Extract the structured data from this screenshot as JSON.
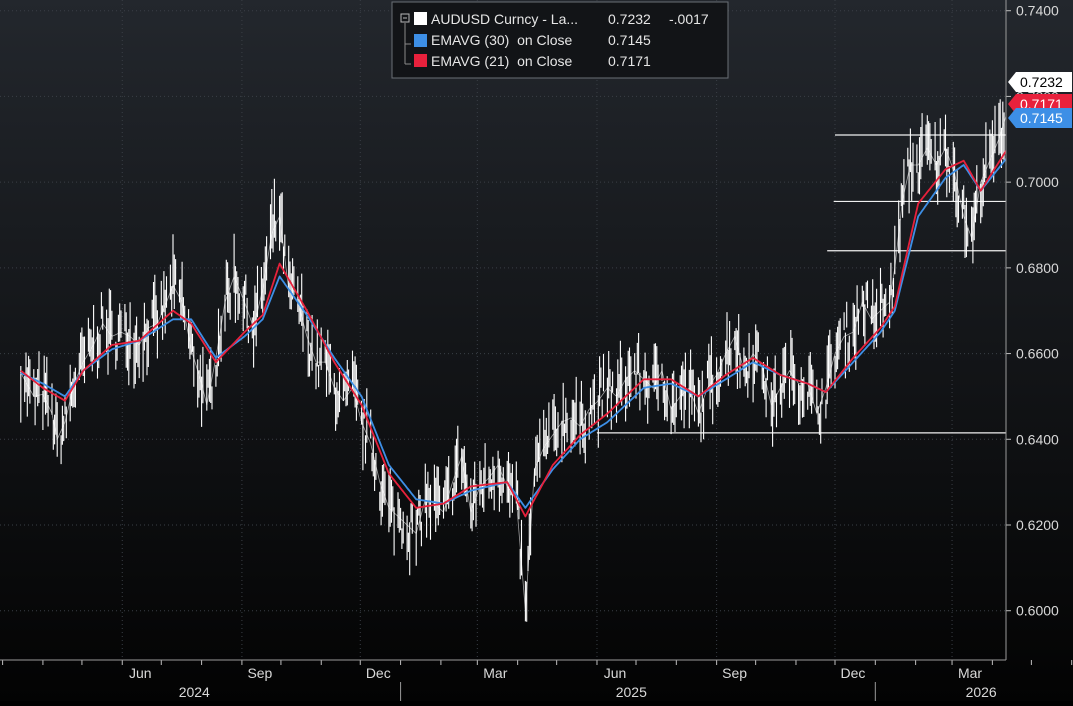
{
  "colors": {
    "price": "#ffffff",
    "ema30": "#3d8fe6",
    "ema21": "#e8213c",
    "hline": "#f0f0f0",
    "grid": "#3a3f46",
    "bg_top": "#23272d",
    "bg_bottom": "#030303"
  },
  "legend": {
    "price_label": "AUDUSD Curncy - La...",
    "price_value": "0.7232",
    "price_change": "-.0017",
    "ema30_label": "EMAVG (30)  on Close",
    "ema30_value": "0.7145",
    "ema21_label": "EMAVG (21)  on Close",
    "ema21_value": "0.7171"
  },
  "chart_data": {
    "type": "line",
    "ylim": [
      0.5885,
      0.7425
    ],
    "yticks": [
      "0.6000",
      "0.6200",
      "0.6400",
      "0.6600",
      "0.6800",
      "0.7000",
      "0.7200",
      "0.7400"
    ],
    "month_ticks": [
      "Jun",
      "Sep",
      "Dec",
      "Mar",
      "Jun",
      "Sep",
      "Dec",
      "Mar"
    ],
    "year_labels": [
      "2024",
      "2025",
      "2026"
    ],
    "last_value_tags": [
      {
        "series": "price",
        "value": "0.7232"
      },
      {
        "series": "ema21",
        "value": "0.7171"
      },
      {
        "series": "ema30",
        "value": "0.7145"
      }
    ],
    "horizontal_lines": [
      {
        "value": 0.711,
        "from": "2025-12-01"
      },
      {
        "value": 0.6955,
        "from": "2025-11-30"
      },
      {
        "value": 0.684,
        "from": "2025-11-25"
      },
      {
        "value": 0.6415,
        "from": "2025-06-01"
      }
    ],
    "series": [
      {
        "name": "AUDUSD Curncy",
        "style": "high-low",
        "points": [
          [
            "2024-03-15",
            0.6555
          ],
          [
            "2024-03-25",
            0.65
          ],
          [
            "2024-04-01",
            0.6505
          ],
          [
            "2024-04-08",
            0.646
          ],
          [
            "2024-04-12",
            0.64
          ],
          [
            "2024-04-18",
            0.644
          ],
          [
            "2024-04-25",
            0.653
          ],
          [
            "2024-05-02",
            0.658
          ],
          [
            "2024-05-10",
            0.662
          ],
          [
            "2024-05-17",
            0.667
          ],
          [
            "2024-05-24",
            0.664
          ],
          [
            "2024-05-31",
            0.665
          ],
          [
            "2024-06-07",
            0.664
          ],
          [
            "2024-06-14",
            0.662
          ],
          [
            "2024-06-21",
            0.666
          ],
          [
            "2024-06-28",
            0.667
          ],
          [
            "2024-07-05",
            0.672
          ],
          [
            "2024-07-10",
            0.676
          ],
          [
            "2024-07-17",
            0.672
          ],
          [
            "2024-07-24",
            0.661
          ],
          [
            "2024-08-01",
            0.653
          ],
          [
            "2024-08-05",
            0.648
          ],
          [
            "2024-08-12",
            0.659
          ],
          [
            "2024-08-19",
            0.672
          ],
          [
            "2024-08-26",
            0.678
          ],
          [
            "2024-09-03",
            0.672
          ],
          [
            "2024-09-10",
            0.666
          ],
          [
            "2024-09-17",
            0.675
          ],
          [
            "2024-09-24",
            0.688
          ],
          [
            "2024-09-30",
            0.692
          ],
          [
            "2024-10-07",
            0.675
          ],
          [
            "2024-10-14",
            0.672
          ],
          [
            "2024-10-21",
            0.664
          ],
          [
            "2024-10-28",
            0.658
          ],
          [
            "2024-11-04",
            0.658
          ],
          [
            "2024-11-11",
            0.652
          ],
          [
            "2024-11-18",
            0.649
          ],
          [
            "2024-11-25",
            0.652
          ],
          [
            "2024-12-02",
            0.644
          ],
          [
            "2024-12-09",
            0.639
          ],
          [
            "2024-12-16",
            0.63
          ],
          [
            "2024-12-23",
            0.624
          ],
          [
            "2024-12-30",
            0.622
          ],
          [
            "2025-01-06",
            0.62
          ],
          [
            "2025-01-13",
            0.618
          ],
          [
            "2025-01-20",
            0.626
          ],
          [
            "2025-01-27",
            0.625
          ],
          [
            "2025-02-03",
            0.623
          ],
          [
            "2025-02-10",
            0.63
          ],
          [
            "2025-02-17",
            0.636
          ],
          [
            "2025-02-24",
            0.623
          ],
          [
            "2025-03-03",
            0.629
          ],
          [
            "2025-03-10",
            0.631
          ],
          [
            "2025-03-17",
            0.634
          ],
          [
            "2025-03-24",
            0.629
          ],
          [
            "2025-03-31",
            0.626
          ],
          [
            "2025-04-07",
            0.6
          ],
          [
            "2025-04-14",
            0.633
          ],
          [
            "2025-04-21",
            0.638
          ],
          [
            "2025-04-28",
            0.641
          ],
          [
            "2025-05-05",
            0.644
          ],
          [
            "2025-05-12",
            0.645
          ],
          [
            "2025-05-19",
            0.643
          ],
          [
            "2025-05-26",
            0.647
          ],
          [
            "2025-06-02",
            0.649
          ],
          [
            "2025-06-09",
            0.652
          ],
          [
            "2025-06-16",
            0.65
          ],
          [
            "2025-06-23",
            0.654
          ],
          [
            "2025-06-30",
            0.656
          ],
          [
            "2025-07-07",
            0.654
          ],
          [
            "2025-07-14",
            0.652
          ],
          [
            "2025-07-21",
            0.656
          ],
          [
            "2025-07-28",
            0.647
          ],
          [
            "2025-08-04",
            0.65
          ],
          [
            "2025-08-11",
            0.652
          ],
          [
            "2025-08-18",
            0.646
          ],
          [
            "2025-08-25",
            0.652
          ],
          [
            "2025-09-01",
            0.655
          ],
          [
            "2025-09-08",
            0.66
          ],
          [
            "2025-09-15",
            0.664
          ],
          [
            "2025-09-22",
            0.656
          ],
          [
            "2025-09-29",
            0.66
          ],
          [
            "2025-10-06",
            0.657
          ],
          [
            "2025-10-13",
            0.648
          ],
          [
            "2025-10-20",
            0.652
          ],
          [
            "2025-10-27",
            0.656
          ],
          [
            "2025-11-03",
            0.653
          ],
          [
            "2025-11-10",
            0.653
          ],
          [
            "2025-11-17",
            0.646
          ],
          [
            "2025-11-24",
            0.652
          ],
          [
            "2025-12-01",
            0.66
          ],
          [
            "2025-12-08",
            0.664
          ],
          [
            "2025-12-15",
            0.665
          ],
          [
            "2025-12-22",
            0.672
          ],
          [
            "2025-12-29",
            0.668
          ],
          [
            "2026-01-05",
            0.67
          ],
          [
            "2026-01-12",
            0.672
          ],
          [
            "2026-01-16",
            0.68
          ],
          [
            "2026-01-22",
            0.696
          ],
          [
            "2026-01-28",
            0.704
          ],
          [
            "2026-02-03",
            0.704
          ],
          [
            "2026-02-10",
            0.708
          ],
          [
            "2026-02-17",
            0.704
          ],
          [
            "2026-02-24",
            0.708
          ],
          [
            "2026-03-03",
            0.702
          ],
          [
            "2026-03-10",
            0.692
          ],
          [
            "2026-03-16",
            0.687
          ],
          [
            "2026-03-23",
            0.7
          ],
          [
            "2026-03-30",
            0.705
          ],
          [
            "2026-04-06",
            0.71
          ],
          [
            "2026-04-13",
            0.717
          ],
          [
            "2026-04-20",
            0.716
          ],
          [
            "2026-04-27",
            0.72
          ],
          [
            "2026-05-04",
            0.7232
          ]
        ]
      },
      {
        "name": "EMAVG (30)",
        "points": [
          [
            "2024-03-15",
            0.6555
          ],
          [
            "2024-04-01",
            0.653
          ],
          [
            "2024-04-18",
            0.65
          ],
          [
            "2024-05-02",
            0.656
          ],
          [
            "2024-05-24",
            0.661
          ],
          [
            "2024-06-14",
            0.663
          ],
          [
            "2024-07-10",
            0.668
          ],
          [
            "2024-07-24",
            0.668
          ],
          [
            "2024-08-12",
            0.659
          ],
          [
            "2024-09-03",
            0.664
          ],
          [
            "2024-09-17",
            0.668
          ],
          [
            "2024-09-30",
            0.678
          ],
          [
            "2024-10-21",
            0.669
          ],
          [
            "2024-11-11",
            0.659
          ],
          [
            "2024-12-02",
            0.65
          ],
          [
            "2024-12-23",
            0.634
          ],
          [
            "2025-01-13",
            0.626
          ],
          [
            "2025-02-03",
            0.625
          ],
          [
            "2025-02-24",
            0.628
          ],
          [
            "2025-03-24",
            0.63
          ],
          [
            "2025-04-07",
            0.624
          ],
          [
            "2025-04-28",
            0.633
          ],
          [
            "2025-05-19",
            0.64
          ],
          [
            "2025-06-09",
            0.644
          ],
          [
            "2025-07-07",
            0.652
          ],
          [
            "2025-07-28",
            0.653
          ],
          [
            "2025-08-18",
            0.65
          ],
          [
            "2025-09-08",
            0.654
          ],
          [
            "2025-09-29",
            0.658
          ],
          [
            "2025-10-20",
            0.655
          ],
          [
            "2025-11-10",
            0.653
          ],
          [
            "2025-11-24",
            0.651
          ],
          [
            "2025-12-15",
            0.658
          ],
          [
            "2026-01-05",
            0.665
          ],
          [
            "2026-01-16",
            0.67
          ],
          [
            "2026-02-03",
            0.692
          ],
          [
            "2026-02-24",
            0.701
          ],
          [
            "2026-03-10",
            0.704
          ],
          [
            "2026-03-23",
            0.698
          ],
          [
            "2026-04-13",
            0.706
          ],
          [
            "2026-05-04",
            0.7145
          ]
        ]
      },
      {
        "name": "EMAVG (21)",
        "points": [
          [
            "2024-03-15",
            0.656
          ],
          [
            "2024-04-01",
            0.652
          ],
          [
            "2024-04-18",
            0.649
          ],
          [
            "2024-05-02",
            0.656
          ],
          [
            "2024-05-24",
            0.662
          ],
          [
            "2024-06-14",
            0.663
          ],
          [
            "2024-07-10",
            0.67
          ],
          [
            "2024-07-24",
            0.667
          ],
          [
            "2024-08-12",
            0.658
          ],
          [
            "2024-09-03",
            0.665
          ],
          [
            "2024-09-17",
            0.669
          ],
          [
            "2024-09-30",
            0.681
          ],
          [
            "2024-10-21",
            0.67
          ],
          [
            "2024-11-11",
            0.658
          ],
          [
            "2024-12-02",
            0.648
          ],
          [
            "2024-12-23",
            0.632
          ],
          [
            "2025-01-13",
            0.624
          ],
          [
            "2025-02-03",
            0.625
          ],
          [
            "2025-02-24",
            0.629
          ],
          [
            "2025-03-24",
            0.63
          ],
          [
            "2025-04-07",
            0.622
          ],
          [
            "2025-04-28",
            0.634
          ],
          [
            "2025-05-19",
            0.641
          ],
          [
            "2025-06-09",
            0.646
          ],
          [
            "2025-07-07",
            0.654
          ],
          [
            "2025-07-28",
            0.654
          ],
          [
            "2025-08-18",
            0.65
          ],
          [
            "2025-09-08",
            0.655
          ],
          [
            "2025-09-29",
            0.659
          ],
          [
            "2025-10-20",
            0.655
          ],
          [
            "2025-11-10",
            0.653
          ],
          [
            "2025-11-24",
            0.651
          ],
          [
            "2025-12-15",
            0.659
          ],
          [
            "2026-01-05",
            0.666
          ],
          [
            "2026-01-16",
            0.671
          ],
          [
            "2026-02-03",
            0.695
          ],
          [
            "2026-02-24",
            0.703
          ],
          [
            "2026-03-10",
            0.705
          ],
          [
            "2026-03-23",
            0.698
          ],
          [
            "2026-04-13",
            0.708
          ],
          [
            "2026-05-04",
            0.7171
          ]
        ]
      }
    ]
  }
}
